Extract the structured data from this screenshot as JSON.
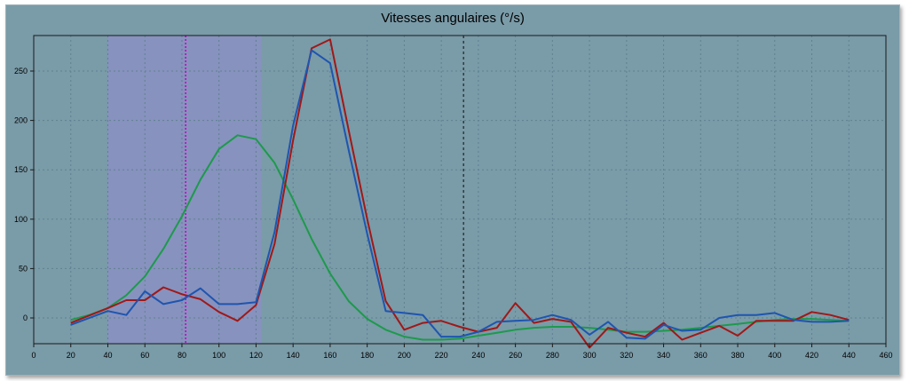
{
  "chart_data": {
    "type": "line",
    "title": "Vitesses angulaires (°/s)",
    "xlabel": "",
    "ylabel": "",
    "xlim": [
      0,
      460
    ],
    "ylim": [
      -30,
      285
    ],
    "x_ticks": [
      0,
      20,
      40,
      60,
      80,
      100,
      120,
      140,
      160,
      180,
      200,
      220,
      240,
      260,
      280,
      300,
      320,
      340,
      360,
      380,
      400,
      420,
      440,
      460
    ],
    "y_ticks": [
      0,
      50,
      100,
      150,
      200,
      250
    ],
    "grid": true,
    "shaded_region": {
      "x_start": 40,
      "x_end": 123,
      "color": "#8a91c2"
    },
    "markers": [
      {
        "x": 82,
        "color": "#cc00cc",
        "style": "dotted"
      },
      {
        "x": 232,
        "color": "#222222",
        "style": "dashed"
      }
    ],
    "series": [
      {
        "color": "#1d9a4c",
        "points": [
          [
            20,
            -2
          ],
          [
            30,
            3
          ],
          [
            40,
            10
          ],
          [
            50,
            23
          ],
          [
            60,
            42
          ],
          [
            70,
            70
          ],
          [
            80,
            103
          ],
          [
            90,
            140
          ],
          [
            100,
            171
          ],
          [
            110,
            185
          ],
          [
            120,
            181
          ],
          [
            130,
            157
          ],
          [
            140,
            120
          ],
          [
            150,
            80
          ],
          [
            160,
            45
          ],
          [
            170,
            17
          ],
          [
            180,
            -1
          ],
          [
            190,
            -12
          ],
          [
            200,
            -19
          ],
          [
            210,
            -22
          ],
          [
            220,
            -22
          ],
          [
            230,
            -21
          ],
          [
            240,
            -18
          ],
          [
            250,
            -15
          ],
          [
            260,
            -12
          ],
          [
            270,
            -10
          ],
          [
            280,
            -9
          ],
          [
            290,
            -9
          ],
          [
            300,
            -10
          ],
          [
            310,
            -12
          ],
          [
            320,
            -14
          ],
          [
            330,
            -14
          ],
          [
            340,
            -13
          ],
          [
            350,
            -12
          ],
          [
            360,
            -10
          ],
          [
            370,
            -8
          ],
          [
            380,
            -6
          ],
          [
            390,
            -4
          ],
          [
            400,
            -2
          ],
          [
            410,
            -1
          ],
          [
            420,
            -1
          ],
          [
            430,
            -2
          ],
          [
            440,
            -3
          ]
        ]
      },
      {
        "color": "#a01818",
        "points": [
          [
            20,
            -5
          ],
          [
            40,
            10
          ],
          [
            50,
            18
          ],
          [
            60,
            18
          ],
          [
            70,
            31
          ],
          [
            80,
            24
          ],
          [
            90,
            19
          ],
          [
            100,
            6
          ],
          [
            110,
            -3
          ],
          [
            120,
            13
          ],
          [
            130,
            75
          ],
          [
            140,
            180
          ],
          [
            150,
            273
          ],
          [
            160,
            282
          ],
          [
            170,
            190
          ],
          [
            180,
            100
          ],
          [
            190,
            17
          ],
          [
            200,
            -12
          ],
          [
            210,
            -5
          ],
          [
            220,
            -3
          ],
          [
            230,
            -9
          ],
          [
            240,
            -14
          ],
          [
            250,
            -10
          ],
          [
            260,
            15
          ],
          [
            270,
            -5
          ],
          [
            280,
            -1
          ],
          [
            290,
            -4
          ],
          [
            300,
            -30
          ],
          [
            310,
            -10
          ],
          [
            320,
            -15
          ],
          [
            330,
            -19
          ],
          [
            340,
            -5
          ],
          [
            350,
            -22
          ],
          [
            360,
            -15
          ],
          [
            370,
            -8
          ],
          [
            380,
            -18
          ],
          [
            390,
            -3
          ],
          [
            400,
            -3
          ],
          [
            410,
            -3
          ],
          [
            420,
            6
          ],
          [
            430,
            3
          ],
          [
            440,
            -2
          ]
        ]
      },
      {
        "color": "#1e55b0",
        "points": [
          [
            20,
            -7
          ],
          [
            40,
            7
          ],
          [
            50,
            3
          ],
          [
            60,
            27
          ],
          [
            70,
            14
          ],
          [
            80,
            18
          ],
          [
            90,
            30
          ],
          [
            100,
            14
          ],
          [
            110,
            14
          ],
          [
            120,
            16
          ],
          [
            130,
            87
          ],
          [
            140,
            195
          ],
          [
            150,
            271
          ],
          [
            160,
            258
          ],
          [
            170,
            170
          ],
          [
            180,
            85
          ],
          [
            190,
            7
          ],
          [
            200,
            5
          ],
          [
            210,
            3
          ],
          [
            220,
            -19
          ],
          [
            230,
            -19
          ],
          [
            240,
            -14
          ],
          [
            250,
            -4
          ],
          [
            260,
            -3
          ],
          [
            270,
            -2
          ],
          [
            280,
            3
          ],
          [
            290,
            -2
          ],
          [
            300,
            -17
          ],
          [
            310,
            -4
          ],
          [
            320,
            -20
          ],
          [
            330,
            -21
          ],
          [
            340,
            -7
          ],
          [
            350,
            -13
          ],
          [
            360,
            -12
          ],
          [
            370,
            0
          ],
          [
            380,
            3
          ],
          [
            390,
            3
          ],
          [
            400,
            5
          ],
          [
            410,
            -2
          ],
          [
            420,
            -4
          ],
          [
            430,
            -4
          ],
          [
            440,
            -3
          ]
        ]
      }
    ]
  }
}
